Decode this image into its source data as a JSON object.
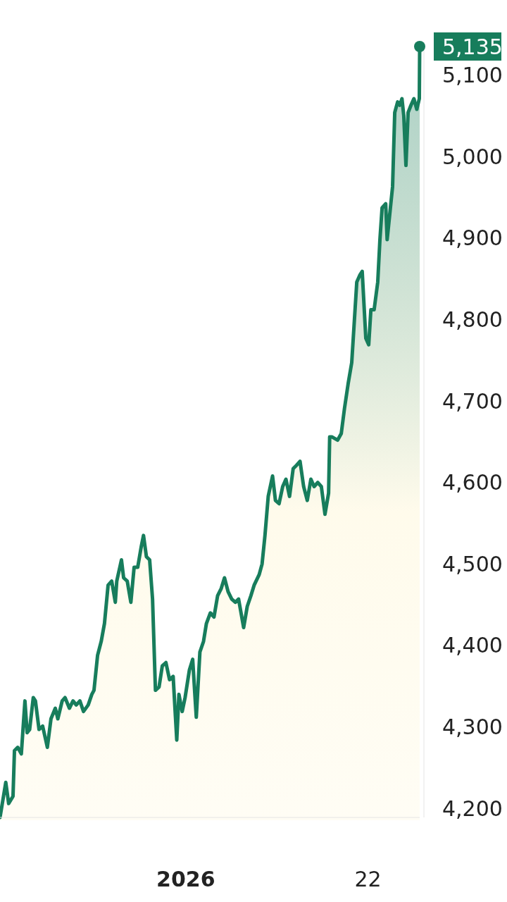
{
  "chart_data": {
    "type": "area",
    "xlim": [
      "2025-12-10T14:00",
      "2026-01-27T23:00"
    ],
    "ylim": [
      4189,
      5135
    ],
    "xticks": [
      {
        "value": "2026-01-01",
        "label": "2026"
      },
      {
        "value": "2026-01-22",
        "label": "22"
      }
    ],
    "yticks": [
      {
        "value": 4200,
        "label": "4,200"
      },
      {
        "value": 4300,
        "label": "4,300"
      },
      {
        "value": 4400,
        "label": "4,400"
      },
      {
        "value": 4500,
        "label": "4,500"
      },
      {
        "value": 4600,
        "label": "4,600"
      },
      {
        "value": 4700,
        "label": "4,700"
      },
      {
        "value": 4800,
        "label": "4,800"
      },
      {
        "value": 4900,
        "label": "4,900"
      },
      {
        "value": 5000,
        "label": "5,000"
      },
      {
        "value": 5100,
        "label": "5,100"
      }
    ],
    "annotations": [
      {
        "text": "5,135",
        "x": "2026-01-27T23:00",
        "y": 5135
      }
    ],
    "series": [
      {
        "color": "#177d5c",
        "x": [
          "2025-12-10T14:00",
          "2025-12-11T06:00",
          "2025-12-11T14:00",
          "2025-12-12T02:00",
          "2025-12-12T06:00",
          "2025-12-12T15:00",
          "2025-12-13T01:00",
          "2025-12-13T11:00",
          "2025-12-13T17:00",
          "2025-12-14T00:00",
          "2025-12-14T10:00",
          "2025-12-14T16:00",
          "2025-12-15T02:00",
          "2025-12-15T12:00",
          "2025-12-16T01:00",
          "2025-12-16T11:00",
          "2025-12-16T23:00",
          "2025-12-17T06:00",
          "2025-12-17T18:00",
          "2025-12-18T02:00",
          "2025-12-18T14:00",
          "2025-12-19T00:00",
          "2025-12-19T09:00",
          "2025-12-19T19:00",
          "2025-12-20T05:00",
          "2025-12-20T18:00",
          "2025-12-21T04:00",
          "2025-12-21T10:00",
          "2025-12-21T20:00",
          "2025-12-22T06:00",
          "2025-12-22T15:00",
          "2025-12-23T01:00",
          "2025-12-23T11:00",
          "2025-12-23T21:00",
          "2025-12-24T01:00",
          "2025-12-24T14:00",
          "2025-12-24T20:00",
          "2025-12-25T06:00",
          "2025-12-25T16:00",
          "2025-12-26T01:00",
          "2025-12-26T11:00",
          "2025-12-26T21:00",
          "2025-12-27T03:00",
          "2025-12-27T11:00",
          "2025-12-27T20:00",
          "2025-12-28T04:00",
          "2025-12-28T12:00",
          "2025-12-28T22:00",
          "2025-12-29T07:00",
          "2025-12-29T17:00",
          "2025-12-30T03:00",
          "2025-12-30T13:00",
          "2025-12-30T23:00",
          "2025-12-31T05:00",
          "2025-12-31T14:00",
          "2025-12-31T22:00",
          "2026-01-01T10:00",
          "2026-01-01T19:00",
          "2026-01-02T05:00",
          "2026-01-02T15:00",
          "2026-01-03T01:00",
          "2026-01-03T09:00",
          "2026-01-03T20:00",
          "2026-01-04T06:00",
          "2026-01-04T16:00",
          "2026-01-05T02:00",
          "2026-01-05T11:00",
          "2026-01-05T21:00",
          "2026-01-06T07:00",
          "2026-01-06T17:00",
          "2026-01-07T02:00",
          "2026-01-07T16:00",
          "2026-01-08T02:00",
          "2026-01-08T12:00",
          "2026-01-08T21:00",
          "2026-01-09T11:00",
          "2026-01-09T19:00",
          "2026-01-10T03:00",
          "2026-01-10T12:00",
          "2026-01-11T00:00",
          "2026-01-11T08:00",
          "2026-01-11T18:00",
          "2026-01-12T04:00",
          "2026-01-12T13:00",
          "2026-01-12T23:00",
          "2026-01-13T09:00",
          "2026-01-13T18:00",
          "2026-01-14T04:00",
          "2026-01-14T14:00",
          "2026-01-15T00:00",
          "2026-01-15T10:00",
          "2026-01-15T19:00",
          "2026-01-16T05:00",
          "2026-01-16T15:00",
          "2026-01-17T01:00",
          "2026-01-17T11:00",
          "2026-01-17T14:00",
          "2026-01-17T20:00",
          "2026-01-18T12:00",
          "2026-01-18T22:00",
          "2026-01-19T07:00",
          "2026-01-19T17:00",
          "2026-01-20T03:00",
          "2026-01-20T17:00",
          "2026-01-21T02:00",
          "2026-01-21T08:00",
          "2026-01-21T18:00",
          "2026-01-22T02:00",
          "2026-01-22T08:00",
          "2026-01-22T17:00",
          "2026-01-23T03:00",
          "2026-01-23T09:00",
          "2026-01-23T15:00",
          "2026-01-24T01:00",
          "2026-01-24T05:00",
          "2026-01-24T14:00",
          "2026-01-24T20:00",
          "2026-01-25T02:00",
          "2026-01-25T10:00",
          "2026-01-25T16:00",
          "2026-01-25T22:00",
          "2026-01-26T03:00",
          "2026-01-26T09:00",
          "2026-01-26T15:00",
          "2026-01-26T23:00",
          "2026-01-27T07:00",
          "2026-01-27T15:00",
          "2026-01-27T22:00",
          "2026-01-27T23:00"
        ],
        "values": [
          4189,
          4232,
          4206,
          4215,
          4271,
          4275,
          4267,
          4332,
          4293,
          4297,
          4336,
          4332,
          4297,
          4301,
          4275,
          4310,
          4323,
          4310,
          4332,
          4336,
          4323,
          4332,
          4327,
          4332,
          4319,
          4327,
          4340,
          4345,
          4388,
          4405,
          4427,
          4474,
          4479,
          4453,
          4479,
          4505,
          4483,
          4479,
          4453,
          4496,
          4496,
          4522,
          4535,
          4509,
          4505,
          4457,
          4345,
          4349,
          4375,
          4379,
          4358,
          4362,
          4284,
          4340,
          4319,
          4336,
          4370,
          4383,
          4312,
          4392,
          4405,
          4427,
          4440,
          4435,
          4461,
          4470,
          4483,
          4466,
          4457,
          4453,
          4457,
          4422,
          4448,
          4461,
          4474,
          4487,
          4500,
          4535,
          4583,
          4608,
          4578,
          4574,
          4595,
          4604,
          4583,
          4617,
          4621,
          4626,
          4595,
          4578,
          4604,
          4595,
          4600,
          4595,
          4561,
          4587,
          4656,
          4656,
          4652,
          4660,
          4691,
          4721,
          4747,
          4846,
          4855,
          4859,
          4777,
          4769,
          4812,
          4812,
          4846,
          4898,
          4937,
          4942,
          4898,
          4937,
          4963,
          5054,
          5067,
          5063,
          5071,
          5050,
          4989,
          5054,
          5063,
          5071,
          5058,
          5071,
          5135
        ]
      }
    ]
  }
}
